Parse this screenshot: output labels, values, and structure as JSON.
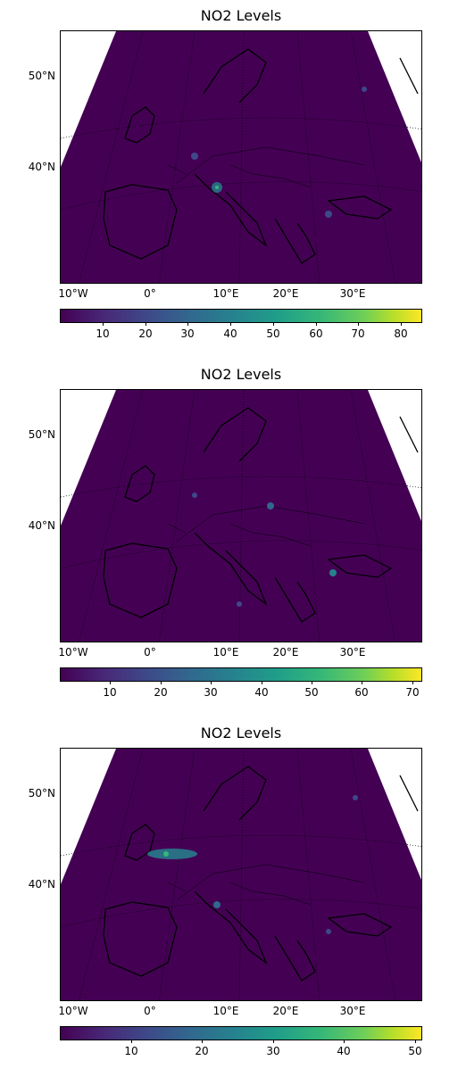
{
  "panels": [
    {
      "title": "NO2 Levels",
      "lat_labels": [
        "50°N",
        "40°N"
      ],
      "lon_labels": [
        "10°W",
        "0°",
        "10°E",
        "20°E",
        "30°E"
      ],
      "colorbar": {
        "ticks": [
          "10",
          "20",
          "30",
          "40",
          "50",
          "60",
          "70",
          "80"
        ],
        "min": 0,
        "max": 85
      }
    },
    {
      "title": "NO2 Levels",
      "lat_labels": [
        "50°N",
        "40°N"
      ],
      "lon_labels": [
        "10°W",
        "0°",
        "10°E",
        "20°E",
        "30°E"
      ],
      "colorbar": {
        "ticks": [
          "10",
          "20",
          "30",
          "40",
          "50",
          "60",
          "70"
        ],
        "min": 0,
        "max": 72
      }
    },
    {
      "title": "NO2 Levels",
      "lat_labels": [
        "50°N",
        "40°N"
      ],
      "lon_labels": [
        "10°W",
        "0°",
        "10°E",
        "20°E",
        "30°E"
      ],
      "colorbar": {
        "ticks": [
          "10",
          "20",
          "30",
          "40",
          "50"
        ],
        "min": 0,
        "max": 51
      }
    }
  ],
  "colormap": [
    "#440154",
    "#3e4989",
    "#26828e",
    "#35b779",
    "#fde725"
  ],
  "map_background": "#440154"
}
